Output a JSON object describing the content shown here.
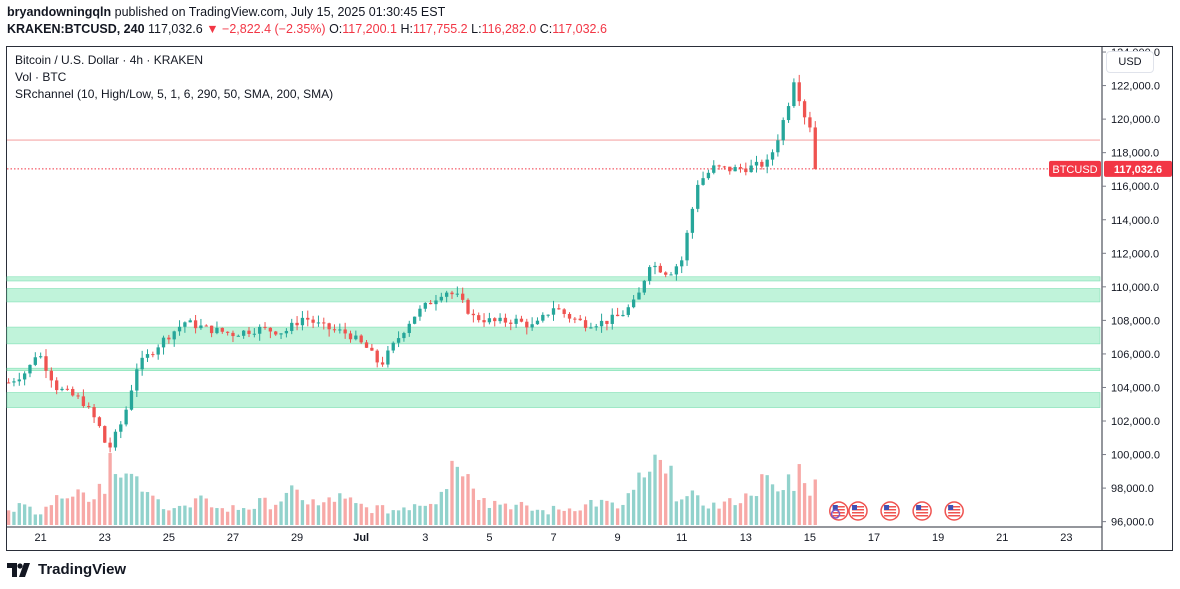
{
  "header": {
    "author": "bryandowningqln",
    "published_text": "published on TradingView.com, July 15, 2025 01:30:45 EST",
    "symbol": "KRAKEN:BTCUSD, 240",
    "price": "117,032.6",
    "change": "▼ −2,822.4 (−2.35%)",
    "o_label": "O:",
    "o_val": "117,200.1",
    "h_label": "H:",
    "h_val": "117,755.2",
    "l_label": "L:",
    "l_val": "116,282.0",
    "c_label": "C:",
    "c_val": "117,032.6"
  },
  "legend": {
    "title": "Bitcoin / U.S. Dollar · 4h · KRAKEN",
    "vol": "Vol · BTC",
    "indicator": "SRchannel (10, High/Low, 5, 1, 6, 290, 50, SMA, 200, SMA)"
  },
  "currency_button": "USD",
  "footer_brand": "TradingView",
  "colors": {
    "up": "#26a69a",
    "down": "#ef5350",
    "zone": "#b9f2d6",
    "line_red": "#f5a8a8",
    "label_red": "#f23645"
  },
  "chart_data": {
    "type": "candlestick",
    "symbol_label": "BTCUSD",
    "last_price_label": "117,032.6",
    "y_ticks": [
      "124,000.0",
      "122,000.0",
      "120,000.0",
      "118,000.0",
      "116,000.0",
      "114,000.0",
      "112,000.0",
      "110,000.0",
      "108,000.0",
      "106,000.0",
      "104,000.0",
      "102,000.0",
      "100,000.0",
      "98,000.0",
      "96,000.0"
    ],
    "y_tick_values": [
      124000,
      122000,
      120000,
      118000,
      116000,
      114000,
      112000,
      110000,
      108000,
      106000,
      104000,
      102000,
      100000,
      98000,
      96000
    ],
    "x_ticks": [
      "21",
      "23",
      "25",
      "27",
      "29",
      "Jul",
      "3",
      "5",
      "7",
      "9",
      "11",
      "13",
      "15",
      "17",
      "19",
      "21",
      "23"
    ],
    "x_tick_days": [
      21,
      23,
      25,
      27,
      29,
      31,
      33,
      35,
      37,
      39,
      41,
      43,
      45,
      47,
      49,
      51,
      53
    ],
    "ylim": [
      95800,
      124300
    ],
    "xlim": [
      19.95,
      54.05
    ],
    "last_price": 117032.6,
    "resistance_line": 118750,
    "sr_zones": [
      [
        110350,
        110600
      ],
      [
        109100,
        109900
      ],
      [
        106600,
        107600
      ],
      [
        105000,
        105150
      ],
      [
        102800,
        103700
      ]
    ],
    "anchor_points": [
      [
        20.0,
        104300
      ],
      [
        20.6,
        105000
      ],
      [
        20.9,
        106200
      ],
      [
        21.5,
        104000
      ],
      [
        22.3,
        103200
      ],
      [
        22.8,
        101800
      ],
      [
        23.1,
        100200
      ],
      [
        23.6,
        102200
      ],
      [
        24.0,
        105200
      ],
      [
        24.3,
        105800
      ],
      [
        24.8,
        106800
      ],
      [
        25.5,
        107900
      ],
      [
        26.2,
        107500
      ],
      [
        27.0,
        107200
      ],
      [
        27.8,
        107500
      ],
      [
        28.6,
        107300
      ],
      [
        29.2,
        108200
      ],
      [
        29.8,
        107600
      ],
      [
        30.6,
        107200
      ],
      [
        31.2,
        106300
      ],
      [
        31.6,
        105300
      ],
      [
        32.1,
        106800
      ],
      [
        32.6,
        108200
      ],
      [
        33.1,
        109000
      ],
      [
        33.6,
        109800
      ],
      [
        34.0,
        109400
      ],
      [
        34.5,
        108200
      ],
      [
        35.2,
        107900
      ],
      [
        35.8,
        108000
      ],
      [
        36.4,
        107600
      ],
      [
        37.0,
        108800
      ],
      [
        37.5,
        108200
      ],
      [
        38.0,
        107800
      ],
      [
        38.6,
        107900
      ],
      [
        39.1,
        108300
      ],
      [
        39.6,
        109200
      ],
      [
        40.0,
        111400
      ],
      [
        40.6,
        110800
      ],
      [
        41.0,
        111600
      ],
      [
        41.5,
        116200
      ],
      [
        42.0,
        117100
      ],
      [
        42.5,
        117000
      ],
      [
        43.1,
        117100
      ],
      [
        43.7,
        117400
      ],
      [
        44.0,
        118900
      ],
      [
        44.3,
        120700
      ],
      [
        44.5,
        122400
      ],
      [
        44.9,
        119800
      ],
      [
        45.2,
        119300
      ],
      [
        45.3,
        117032.6
      ]
    ],
    "volume_profile": [
      0.25,
      0.22,
      0.2,
      0.3,
      0.5,
      0.45,
      0.4,
      0.55,
      0.95,
      0.6,
      0.5,
      0.35,
      0.3,
      0.25,
      0.22,
      0.3,
      0.28,
      0.2,
      0.22,
      0.24,
      0.28,
      0.3,
      0.35,
      0.4,
      0.3,
      0.25,
      0.35,
      0.3,
      0.25,
      0.22,
      0.2,
      0.2,
      0.25,
      0.3,
      0.35,
      0.55,
      0.85,
      0.6,
      0.45,
      0.3,
      0.28,
      0.25,
      0.2,
      0.18,
      0.2,
      0.22,
      0.25,
      0.3,
      0.28,
      0.24,
      0.4,
      0.55,
      0.75,
      0.6,
      0.45,
      0.35,
      0.3,
      0.25,
      0.28,
      0.35,
      0.5,
      0.55,
      0.45,
      0.6,
      0.7,
      0.5
    ]
  }
}
